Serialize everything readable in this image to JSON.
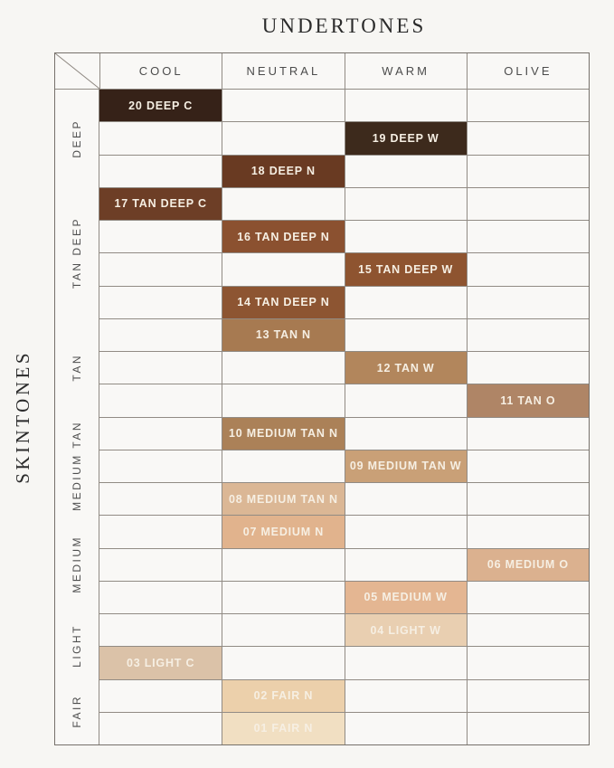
{
  "title": "UNDERTONES",
  "side_title": "SKINTONES",
  "columns": [
    "COOL",
    "NEUTRAL",
    "WARM",
    "OLIVE"
  ],
  "row_groups": [
    {
      "label": "DEEP",
      "rows": 3
    },
    {
      "label": "TAN DEEP",
      "rows": 4
    },
    {
      "label": "TAN",
      "rows": 3
    },
    {
      "label": "MEDIUM TAN",
      "rows": 3
    },
    {
      "label": "MEDIUM",
      "rows": 3
    },
    {
      "label": "LIGHT",
      "rows": 2
    },
    {
      "label": "FAIR",
      "rows": 2
    }
  ],
  "shades": [
    {
      "id": "20-deep-c",
      "label": "20 DEEP C",
      "row": 1,
      "column": "COOL",
      "group": "DEEP",
      "color": "#362218"
    },
    {
      "id": "19-deep-w",
      "label": "19 DEEP W",
      "row": 2,
      "column": "WARM",
      "group": "DEEP",
      "color": "#3d2a1c"
    },
    {
      "id": "18-deep-n",
      "label": "18 DEEP N",
      "row": 3,
      "column": "NEUTRAL",
      "group": "DEEP",
      "color": "#693a22"
    },
    {
      "id": "17-tan-deep-c",
      "label": "17 TAN DEEP C",
      "row": 4,
      "column": "COOL",
      "group": "TAN DEEP",
      "color": "#6d3e26"
    },
    {
      "id": "16-tan-deep-n",
      "label": "16 TAN DEEP N",
      "row": 5,
      "column": "NEUTRAL",
      "group": "TAN DEEP",
      "color": "#8b5130"
    },
    {
      "id": "15-tan-deep-w",
      "label": "15 TAN DEEP W",
      "row": 6,
      "column": "WARM",
      "group": "TAN DEEP",
      "color": "#8e5430"
    },
    {
      "id": "14-tan-deep-n",
      "label": "14 TAN DEEP N",
      "row": 7,
      "column": "NEUTRAL",
      "group": "TAN DEEP",
      "color": "#8d5532"
    },
    {
      "id": "13-tan-n",
      "label": "13 TAN N",
      "row": 8,
      "column": "NEUTRAL",
      "group": "TAN",
      "color": "#a77a51"
    },
    {
      "id": "12-tan-w",
      "label": "12 TAN W",
      "row": 9,
      "column": "WARM",
      "group": "TAN",
      "color": "#b2865c"
    },
    {
      "id": "11-tan-o",
      "label": "11 TAN O",
      "row": 10,
      "column": "OLIVE",
      "group": "TAN",
      "color": "#af8566"
    },
    {
      "id": "10-medium-tan-n",
      "label": "10 MEDIUM TAN N",
      "row": 11,
      "column": "NEUTRAL",
      "group": "MEDIUM TAN",
      "color": "#ab8158"
    },
    {
      "id": "09-medium-tan-w",
      "label": "09 MEDIUM TAN W",
      "row": 12,
      "column": "WARM",
      "group": "MEDIUM TAN",
      "color": "#c9a077"
    },
    {
      "id": "08-medium-tan-n",
      "label": "08 MEDIUM TAN N",
      "row": 13,
      "column": "NEUTRAL",
      "group": "MEDIUM TAN",
      "color": "#dbb795"
    },
    {
      "id": "07-medium-n",
      "label": "07 MEDIUM N",
      "row": 14,
      "column": "NEUTRAL",
      "group": "MEDIUM",
      "color": "#e1b38d"
    },
    {
      "id": "06-medium-o",
      "label": "06 MEDIUM O",
      "row": 15,
      "column": "OLIVE",
      "group": "MEDIUM",
      "color": "#dbb18f"
    },
    {
      "id": "05-medium-w",
      "label": "05 MEDIUM W",
      "row": 16,
      "column": "WARM",
      "group": "MEDIUM",
      "color": "#e4b692"
    },
    {
      "id": "04-light-w",
      "label": "04 LIGHT W",
      "row": 17,
      "column": "WARM",
      "group": "LIGHT",
      "color": "#e9cfb1"
    },
    {
      "id": "03-light-c",
      "label": "03 LIGHT C",
      "row": 18,
      "column": "COOL",
      "group": "LIGHT",
      "color": "#dbc2a8"
    },
    {
      "id": "02-fair-n",
      "label": "02 FAIR N",
      "row": 19,
      "column": "NEUTRAL",
      "group": "FAIR",
      "color": "#ecd0ab"
    },
    {
      "id": "01-fair-n",
      "label": "01 FAIR N",
      "row": 20,
      "column": "NEUTRAL",
      "group": "FAIR",
      "color": "#f1dfc2"
    }
  ],
  "colors": {
    "background": "#f7f6f3",
    "cell_background": "#f9f8f6",
    "grid_line": "#918b84",
    "outer_border": "#76716b",
    "header_text": "#4c4c4c",
    "title_text": "#2b2b2b",
    "cell_text": "#f6efe3"
  },
  "chart_data": {
    "type": "heatmap",
    "title": "UNDERTONES",
    "xlabel": "UNDERTONES",
    "ylabel": "SKINTONES",
    "x_categories": [
      "COOL",
      "NEUTRAL",
      "WARM",
      "OLIVE"
    ],
    "y_categories": [
      "DEEP",
      "TAN DEEP",
      "TAN",
      "MEDIUM TAN",
      "MEDIUM",
      "LIGHT",
      "FAIR"
    ],
    "grid": true,
    "legend": false,
    "cells": [
      {
        "shade": "20 DEEP C",
        "undertone": "COOL",
        "skintone": "DEEP",
        "swatch_color": "#362218"
      },
      {
        "shade": "19 DEEP W",
        "undertone": "WARM",
        "skintone": "DEEP",
        "swatch_color": "#3d2a1c"
      },
      {
        "shade": "18 DEEP N",
        "undertone": "NEUTRAL",
        "skintone": "DEEP",
        "swatch_color": "#693a22"
      },
      {
        "shade": "17 TAN DEEP C",
        "undertone": "COOL",
        "skintone": "TAN DEEP",
        "swatch_color": "#6d3e26"
      },
      {
        "shade": "16 TAN DEEP N",
        "undertone": "NEUTRAL",
        "skintone": "TAN DEEP",
        "swatch_color": "#8b5130"
      },
      {
        "shade": "15 TAN DEEP W",
        "undertone": "WARM",
        "skintone": "TAN DEEP",
        "swatch_color": "#8e5430"
      },
      {
        "shade": "14 TAN DEEP N",
        "undertone": "NEUTRAL",
        "skintone": "TAN DEEP",
        "swatch_color": "#8d5532"
      },
      {
        "shade": "13 TAN N",
        "undertone": "NEUTRAL",
        "skintone": "TAN",
        "swatch_color": "#a77a51"
      },
      {
        "shade": "12 TAN W",
        "undertone": "WARM",
        "skintone": "TAN",
        "swatch_color": "#b2865c"
      },
      {
        "shade": "11 TAN O",
        "undertone": "OLIVE",
        "skintone": "TAN",
        "swatch_color": "#af8566"
      },
      {
        "shade": "10 MEDIUM TAN N",
        "undertone": "NEUTRAL",
        "skintone": "MEDIUM TAN",
        "swatch_color": "#ab8158"
      },
      {
        "shade": "09 MEDIUM TAN W",
        "undertone": "WARM",
        "skintone": "MEDIUM TAN",
        "swatch_color": "#c9a077"
      },
      {
        "shade": "08 MEDIUM TAN N",
        "undertone": "NEUTRAL",
        "skintone": "MEDIUM TAN",
        "swatch_color": "#dbb795"
      },
      {
        "shade": "07 MEDIUM N",
        "undertone": "NEUTRAL",
        "skintone": "MEDIUM",
        "swatch_color": "#e1b38d"
      },
      {
        "shade": "06 MEDIUM O",
        "undertone": "OLIVE",
        "skintone": "MEDIUM",
        "swatch_color": "#dbb18f"
      },
      {
        "shade": "05 MEDIUM W",
        "undertone": "WARM",
        "skintone": "MEDIUM",
        "swatch_color": "#e4b692"
      },
      {
        "shade": "04 LIGHT W",
        "undertone": "WARM",
        "skintone": "LIGHT",
        "swatch_color": "#e9cfb1"
      },
      {
        "shade": "03 LIGHT C",
        "undertone": "COOL",
        "skintone": "LIGHT",
        "swatch_color": "#dbc2a8"
      },
      {
        "shade": "02 FAIR N",
        "undertone": "NEUTRAL",
        "skintone": "FAIR",
        "swatch_color": "#ecd0ab"
      },
      {
        "shade": "01 FAIR N",
        "undertone": "NEUTRAL",
        "skintone": "FAIR",
        "swatch_color": "#f1dfc2"
      }
    ]
  }
}
